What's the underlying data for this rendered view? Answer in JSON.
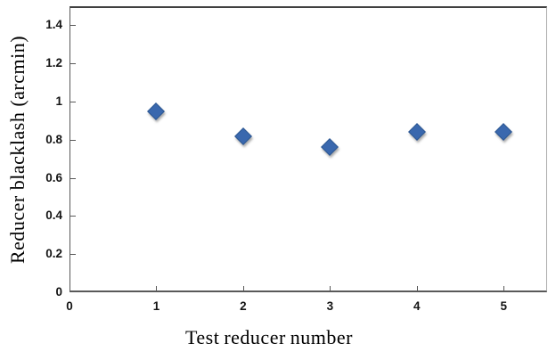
{
  "chart_data": {
    "type": "scatter",
    "title": "",
    "xlabel": "Test reducer number",
    "ylabel": "Reducer blacklash (arcmin)",
    "x": [
      1,
      2,
      3,
      4,
      5
    ],
    "y": [
      0.95,
      0.82,
      0.76,
      0.84,
      0.84
    ],
    "xlim": [
      0,
      5.5
    ],
    "ylim": [
      0,
      1.5
    ],
    "xticks": [
      0,
      1,
      2,
      3,
      4,
      5
    ],
    "xtick_labels": [
      "0",
      "1",
      "2",
      "3",
      "4",
      "5"
    ],
    "yticks": [
      0,
      0.2,
      0.4,
      0.6,
      0.8,
      1,
      1.2,
      1.4
    ],
    "ytick_labels": [
      "0",
      "0.2",
      "0.4",
      "0.6",
      "0.8",
      "1",
      "1.2",
      "1.4"
    ],
    "grid": false,
    "legend": "none",
    "marker": {
      "shape": "diamond",
      "color": "#3a68ae",
      "border_color": "#2d5792"
    },
    "colors": {
      "axis": "#595959",
      "plot_border_top": "#404040",
      "plot_border_right": "#ababab",
      "tick_label": "#141414",
      "background": "#ffffff"
    }
  }
}
